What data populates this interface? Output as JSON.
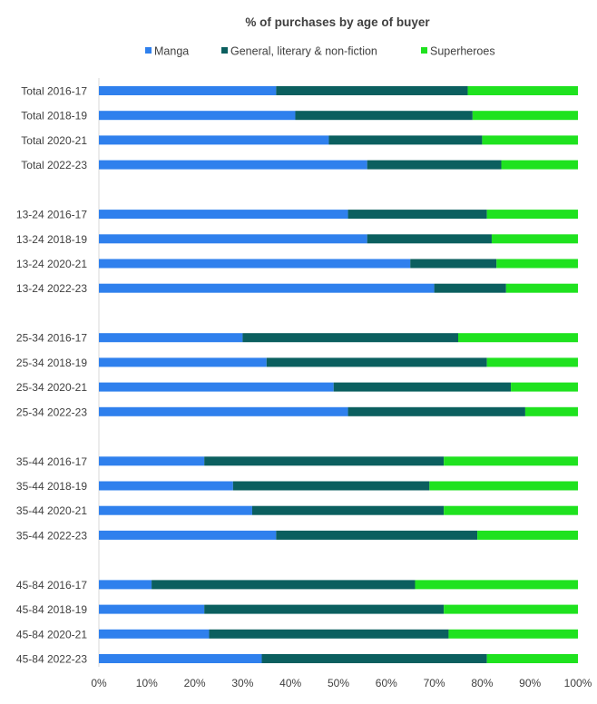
{
  "chart_data": {
    "type": "bar",
    "orientation": "horizontal",
    "stacked": true,
    "title": "% of purchases by age of buyer",
    "legend_position": "top",
    "xlim": [
      0,
      100
    ],
    "x_ticks": [
      "0%",
      "10%",
      "20%",
      "30%",
      "40%",
      "50%",
      "60%",
      "70%",
      "80%",
      "90%",
      "100%"
    ],
    "grid": false,
    "categories": [
      "Total 2016-17",
      "Total 2018-19",
      "Total 2020-21",
      "Total 2022-23",
      "13-24 2016-17",
      "13-24 2018-19",
      "13-24 2020-21",
      "13-24 2022-23",
      "25-34 2016-17",
      "25-34 2018-19",
      "25-34 2020-21",
      "25-34 2022-23",
      "35-44 2016-17",
      "35-44 2018-19",
      "35-44 2020-21",
      "35-44 2022-23",
      "45-84 2016-17",
      "45-84 2018-19",
      "45-84 2020-21",
      "45-84 2022-23"
    ],
    "group_size": 4,
    "series": [
      {
        "name": "Manga",
        "color": "#2f80ed",
        "values": [
          37,
          41,
          48,
          56,
          52,
          56,
          65,
          70,
          30,
          35,
          49,
          52,
          22,
          28,
          32,
          37,
          11,
          22,
          23,
          34
        ]
      },
      {
        "name": "General, literary & non-fiction",
        "color": "#0b5f5f",
        "values": [
          40,
          37,
          32,
          28,
          29,
          26,
          18,
          15,
          45,
          46,
          37,
          37,
          50,
          41,
          40,
          42,
          55,
          50,
          50,
          47
        ]
      },
      {
        "name": "Superheroes",
        "color": "#1fe21f",
        "values": [
          23,
          22,
          20,
          16,
          19,
          18,
          17,
          15,
          25,
          19,
          14,
          11,
          28,
          31,
          28,
          21,
          34,
          28,
          27,
          19
        ]
      }
    ]
  }
}
